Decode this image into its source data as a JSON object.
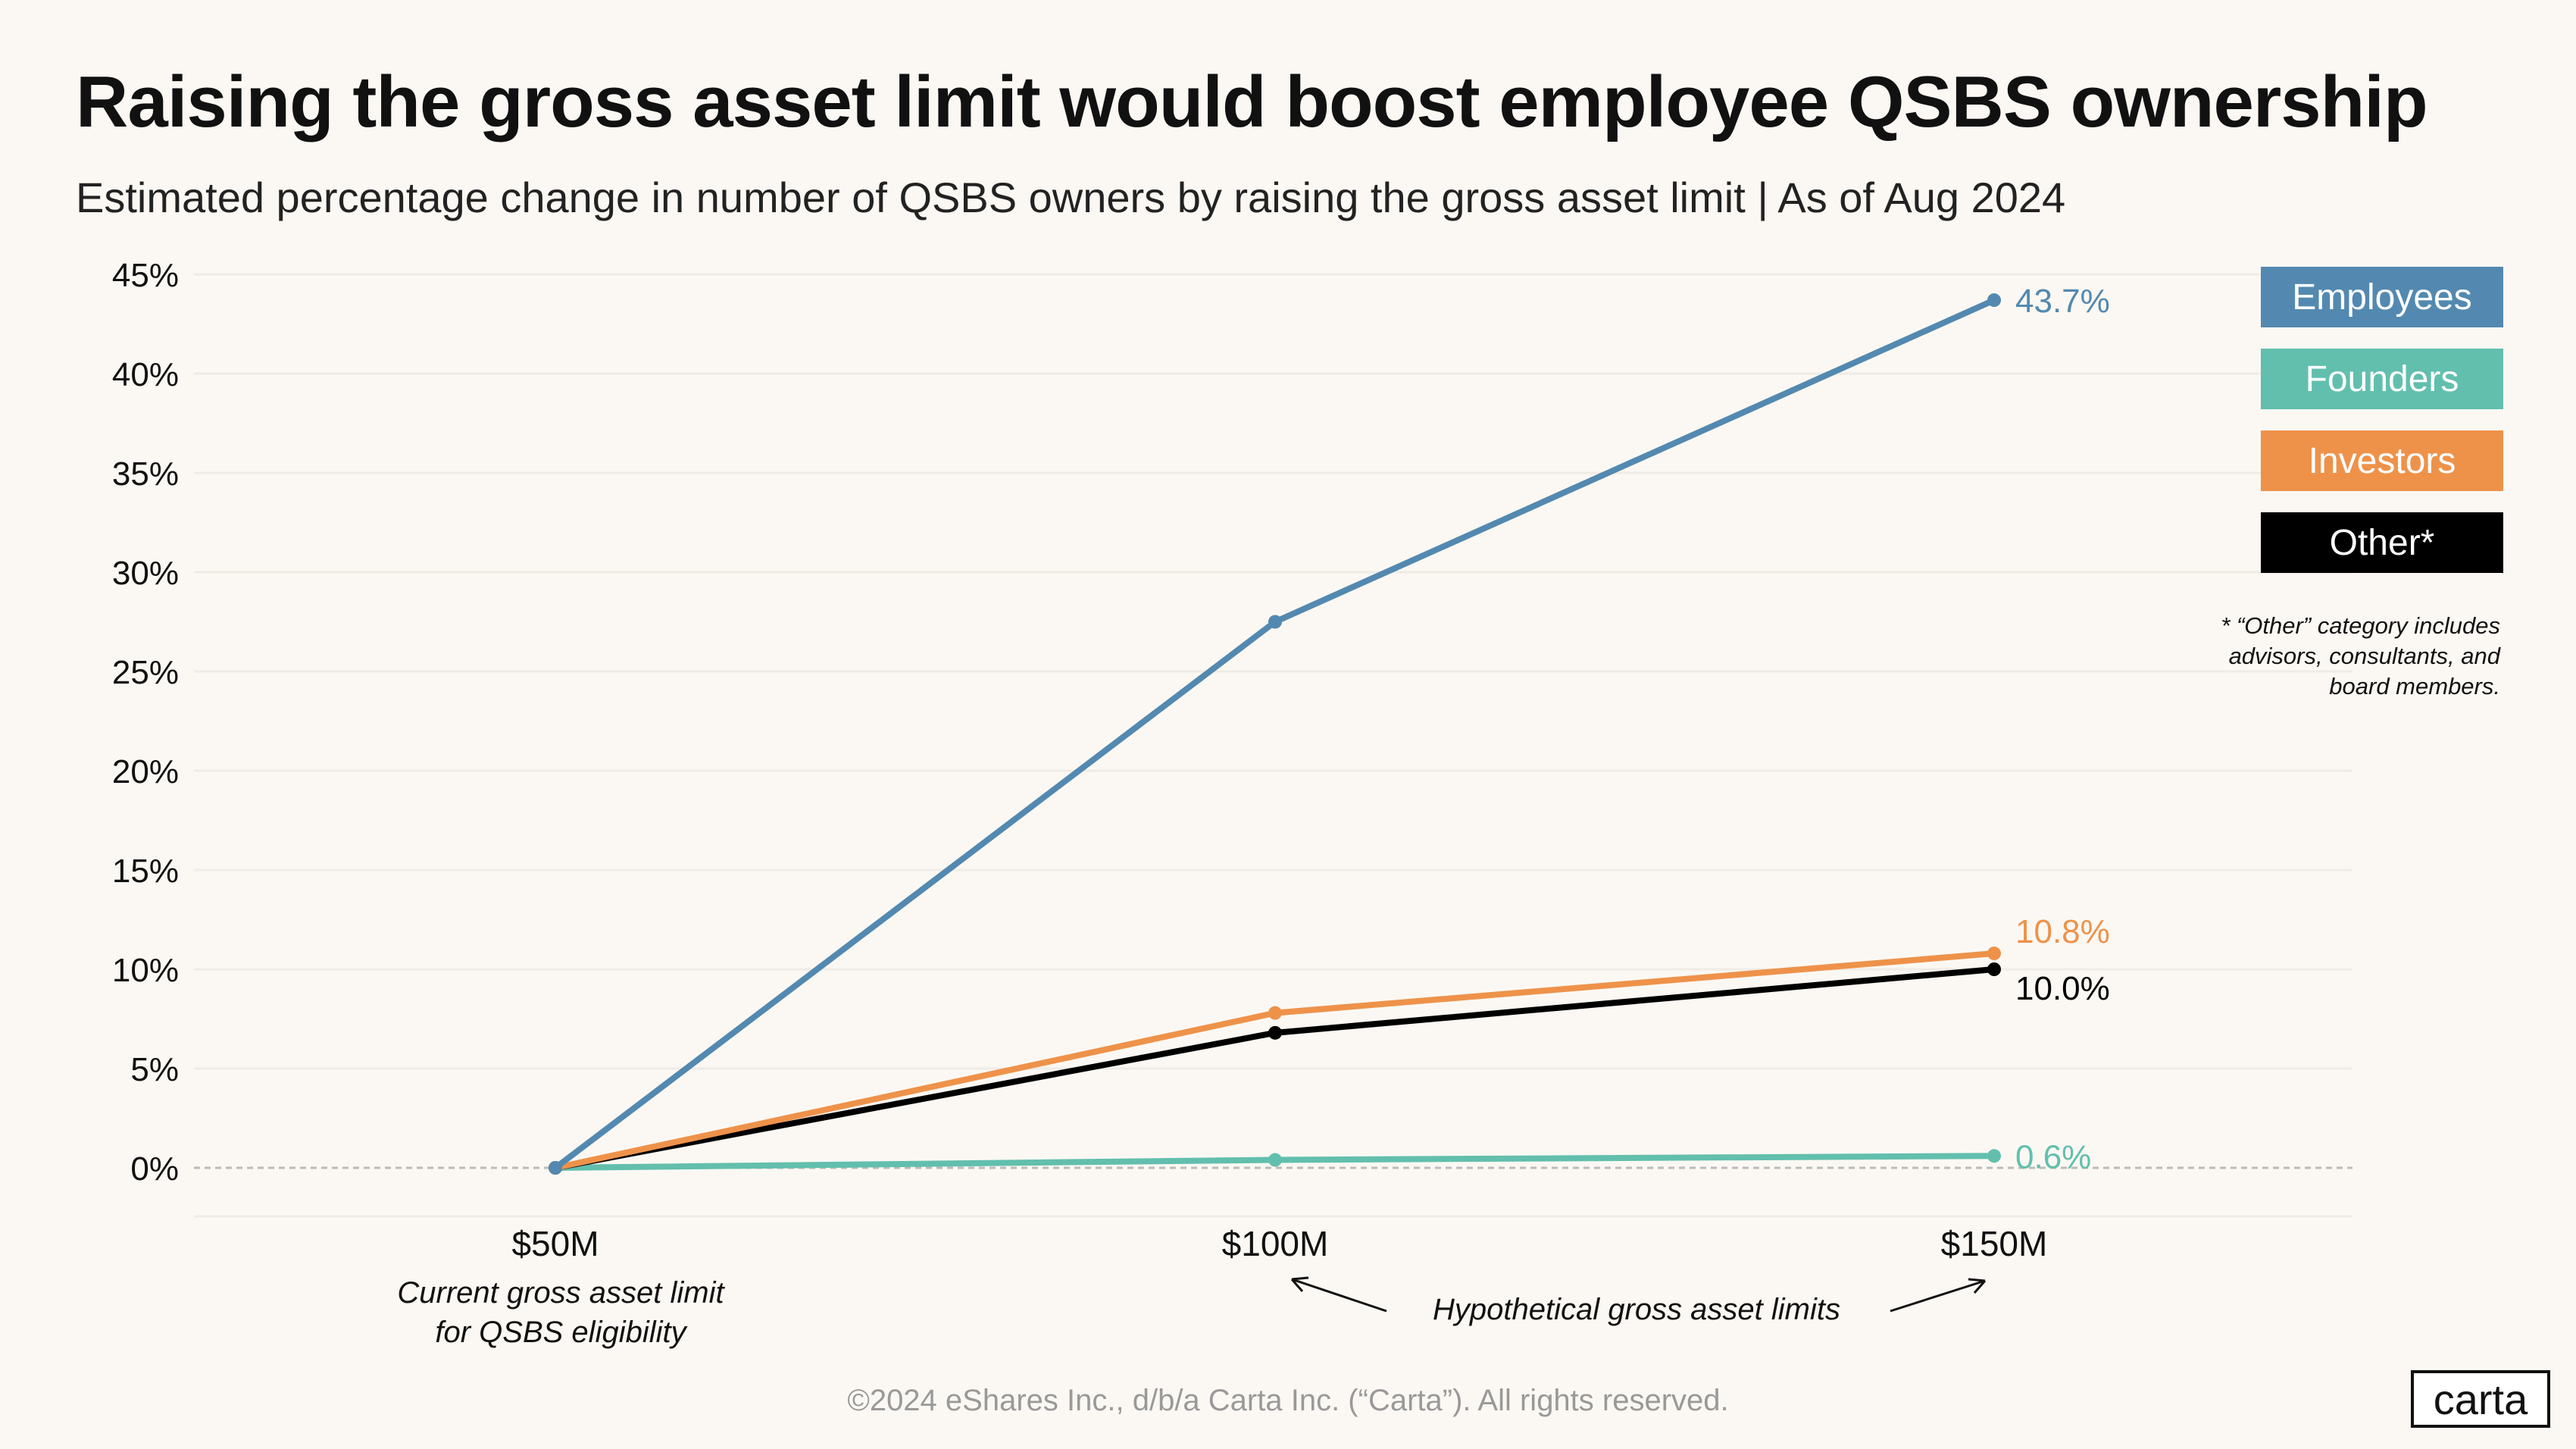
{
  "header": {
    "title": "Raising the gross asset limit would boost employee QSBS ownership",
    "subtitle": "Estimated percentage change in number of QSBS owners by raising the gross asset limit  | As of Aug 2024"
  },
  "chart_data": {
    "type": "line",
    "title": "Raising the gross asset limit would boost employee QSBS ownership",
    "subtitle": "Estimated percentage change in number of QSBS owners by raising the gross asset limit  | As of Aug 2024",
    "categories": [
      "$50M",
      "$100M",
      "$150M"
    ],
    "y_ticks": [
      "0%",
      "5%",
      "10%",
      "15%",
      "20%",
      "25%",
      "30%",
      "35%",
      "40%",
      "45%"
    ],
    "ylim": [
      0,
      45
    ],
    "grid": true,
    "legend_placement": "right",
    "series": [
      {
        "name": "Employees",
        "color": "#5389b0",
        "values": [
          0,
          27.5,
          43.7
        ],
        "end_label": "43.7%"
      },
      {
        "name": "Founders",
        "color": "#62bfad",
        "values": [
          0,
          0.4,
          0.6
        ],
        "end_label": "0.6%"
      },
      {
        "name": "Investors",
        "color": "#ee924a",
        "values": [
          0,
          7.8,
          10.8
        ],
        "end_label": "10.8%"
      },
      {
        "name": "Other*",
        "color": "#000000",
        "values": [
          0,
          6.8,
          10.0
        ],
        "end_label": "10.0%"
      }
    ],
    "annotations": {
      "current": "Current gross asset limit\nfor QSBS eligibility",
      "current_line1": "Current gross asset limit",
      "current_line2": "for QSBS eligibility",
      "hypothetical": "Hypothetical gross asset limits"
    }
  },
  "note": "* “Other” category includes advisors, consultants, and board members.",
  "footer": "©2024 eShares Inc., d/b/a Carta Inc. (“Carta”). All rights reserved.",
  "logo": "carta"
}
